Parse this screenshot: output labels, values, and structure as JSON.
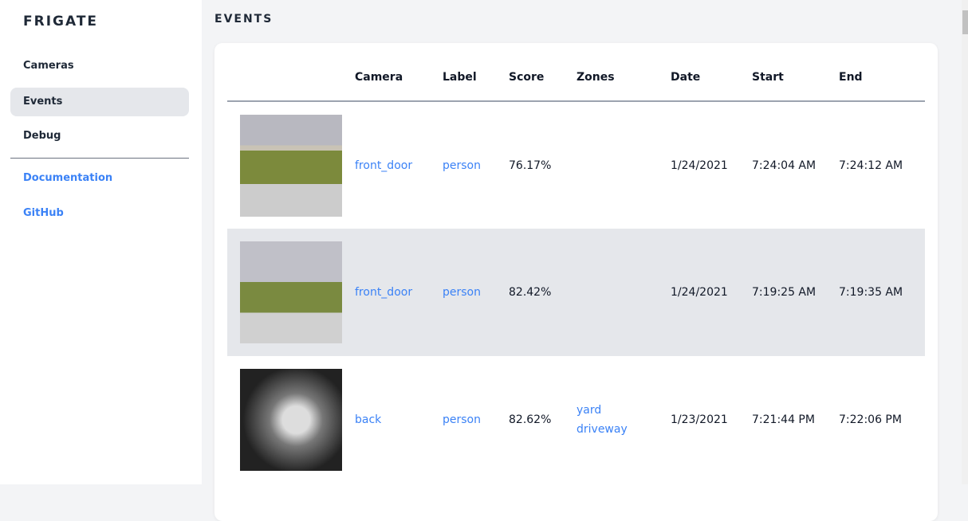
{
  "sidebar": {
    "brand": "FRIGATE",
    "items": [
      {
        "label": "Cameras"
      },
      {
        "label": "Events",
        "active": true
      },
      {
        "label": "Debug"
      }
    ],
    "links": [
      {
        "label": "Documentation"
      },
      {
        "label": "GitHub"
      }
    ]
  },
  "main": {
    "title": "EVENTS",
    "columns": [
      "",
      "Camera",
      "Label",
      "Score",
      "Zones",
      "Date",
      "Start",
      "End"
    ],
    "rows": [
      {
        "camera": "front_door",
        "label": "person",
        "score": "76.17%",
        "zones": [],
        "date": "1/24/2021",
        "start": "7:24:04 AM",
        "end": "7:24:12 AM"
      },
      {
        "camera": "front_door",
        "label": "person",
        "score": "82.42%",
        "zones": [],
        "date": "1/24/2021",
        "start": "7:19:25 AM",
        "end": "7:19:35 AM"
      },
      {
        "camera": "back",
        "label": "person",
        "score": "82.62%",
        "zones": [
          "yard",
          "driveway"
        ],
        "date": "1/23/2021",
        "start": "7:21:44 PM",
        "end": "7:22:06 PM"
      }
    ]
  },
  "colors": {
    "accent": "#3b82f6",
    "active_bg": "#e5e7eb"
  }
}
